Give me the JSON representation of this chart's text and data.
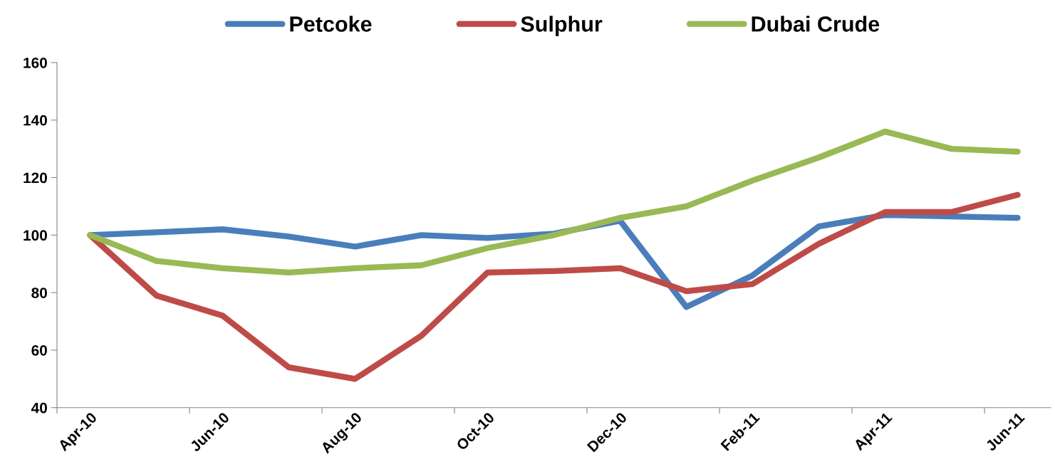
{
  "chart_data": {
    "type": "line",
    "categories": [
      "Apr-10",
      null,
      "Jun-10",
      null,
      "Aug-10",
      null,
      "Oct-10",
      null,
      "Dec-10",
      null,
      "Feb-11",
      null,
      "Apr-11",
      null,
      "Jun-11"
    ],
    "series": [
      {
        "name": "Petcoke",
        "color": "#4a7ebb",
        "values": [
          100,
          101,
          102,
          99.5,
          96,
          100,
          99,
          100.5,
          105,
          75,
          86,
          103,
          107,
          106.5,
          106
        ]
      },
      {
        "name": "Sulphur",
        "color": "#be4b48",
        "values": [
          100,
          79,
          72,
          54,
          50,
          65,
          87,
          87.5,
          88.5,
          80.5,
          83,
          97,
          108,
          108,
          114
        ]
      },
      {
        "name": "Dubai Crude",
        "color": "#98b954",
        "values": [
          100,
          91,
          88.5,
          87,
          88.5,
          89.5,
          95.5,
          100,
          106,
          110,
          119,
          127,
          136,
          130,
          129
        ]
      }
    ],
    "ylim": [
      40,
      160
    ],
    "yticks": [
      40,
      60,
      80,
      100,
      120,
      140,
      160
    ],
    "grid": false,
    "legend": "top",
    "marker": "none",
    "line_style": "solid"
  }
}
